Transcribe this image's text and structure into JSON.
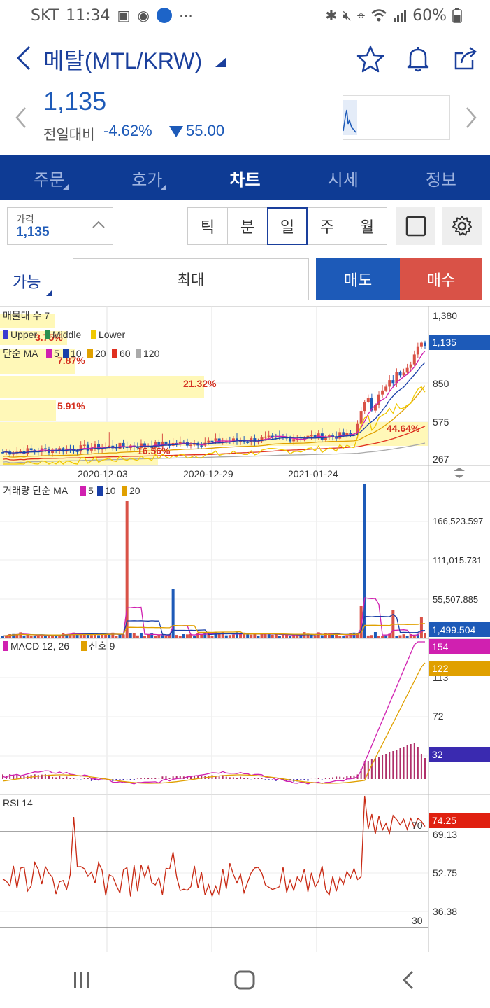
{
  "status_bar": {
    "carrier": "SKT",
    "time": "11:34",
    "battery": "60%",
    "icons_left": [
      "image-icon",
      "dot-icon",
      "app-badge-icon",
      "more-icon"
    ],
    "icons_right": [
      "bluetooth-icon",
      "mute-icon",
      "location-icon",
      "wifi-icon",
      "signal-icon",
      "battery-icon"
    ]
  },
  "header": {
    "title": "메탈(MTL/KRW)",
    "icons": [
      "star-icon",
      "bell-icon",
      "share-icon"
    ]
  },
  "quote": {
    "price": "1,135",
    "change_label": "전일대비",
    "change_pct": "-4.62%",
    "change_value": "55.00",
    "accent": "#1d5ab8"
  },
  "tabs": [
    {
      "label": "주문",
      "active": false
    },
    {
      "label": "호가",
      "active": false
    },
    {
      "label": "차트",
      "active": true
    },
    {
      "label": "시세",
      "active": false
    },
    {
      "label": "정보",
      "active": false
    }
  ],
  "controls": {
    "price_label": "가격",
    "price_value": "1,135",
    "periods": [
      {
        "label": "틱",
        "active": false
      },
      {
        "label": "분",
        "active": false
      },
      {
        "label": "일",
        "active": true
      },
      {
        "label": "주",
        "active": false
      },
      {
        "label": "월",
        "active": false
      }
    ]
  },
  "order": {
    "available_label": "가능",
    "max_label": "최대",
    "sell_label": "매도",
    "buy_label": "매수",
    "sell_color": "#1d5ab8",
    "buy_color": "#d95247"
  },
  "chart_data": [
    {
      "type": "candlestick",
      "panel": "price",
      "overlay_texts": [
        "매물대 수 7"
      ],
      "bollinger_legend": [
        "Upper",
        "Middle",
        "Lower"
      ],
      "ma_legend_title": "단순 MA",
      "ma_periods": [
        "5",
        "10",
        "20",
        "60",
        "120"
      ],
      "ma_colors": [
        "#d020b0",
        "#1a3fa8",
        "#e0a000",
        "#e03020",
        "#aaaaaa"
      ],
      "y_ticks": [
        "1,380",
        "850",
        "575",
        "267"
      ],
      "current_price_tag": "1,135",
      "x_ticks": [
        "2020-12-03",
        "2020-12-29",
        "2021-01-24"
      ],
      "volume_profile_labels": [
        "3.75%",
        "7.87%",
        "21.32%",
        "5.91%",
        "44.64%",
        "16.56%"
      ],
      "ylim": [
        267,
        1380
      ]
    },
    {
      "type": "bar",
      "panel": "volume",
      "title": "거래량 단순 MA",
      "ma_periods": [
        "5",
        "10",
        "20"
      ],
      "y_ticks": [
        "166,523.597",
        "111,015.731",
        "55,507.885"
      ],
      "current_value_tag": "1,499.504"
    },
    {
      "type": "line",
      "panel": "macd",
      "title": "MACD 12, 26",
      "signal_label": "신호 9",
      "y_ticks": [
        "113",
        "72"
      ],
      "tags": [
        "154",
        "122",
        "32"
      ]
    },
    {
      "type": "line",
      "panel": "rsi",
      "title": "RSI 14",
      "y_ticks": [
        "69.13",
        "52.75",
        "36.38"
      ],
      "levels": [
        "70",
        "30"
      ],
      "current_value_tag": "74.25"
    }
  ]
}
